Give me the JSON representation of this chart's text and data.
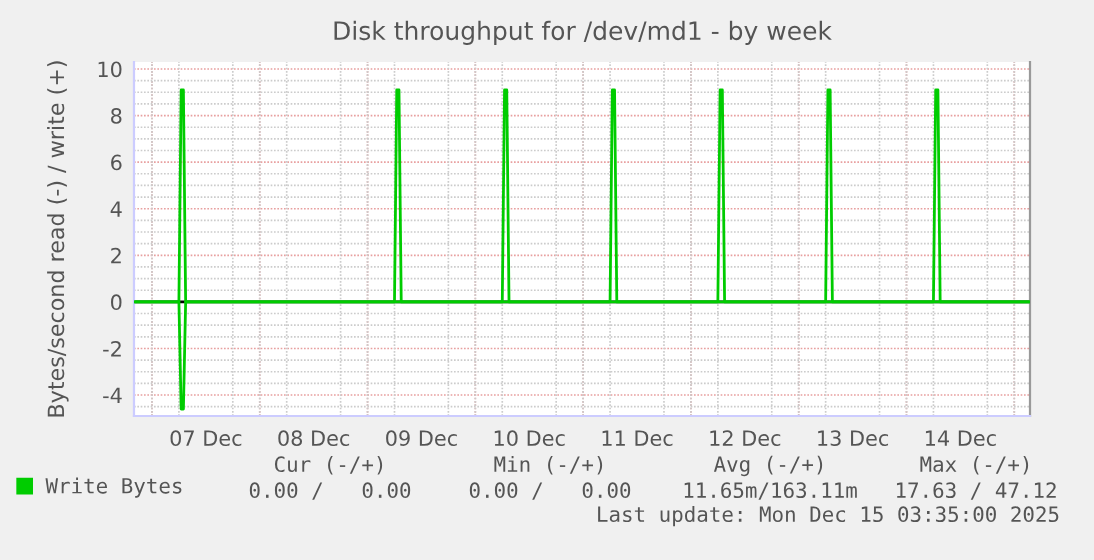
{
  "chart_data": {
    "type": "line",
    "title": "Disk throughput for /dev/md1 - by week",
    "ylabel": "Bytes/second read (-) / write (+)",
    "series": [
      {
        "name": "Write Bytes",
        "color": "#00cc00",
        "x": [
          "2025-12-06T20:00",
          "2025-12-07T06:00",
          "2025-12-07T06:30",
          "2025-12-07T07:00",
          "2025-12-07T07:30",
          "2025-12-09T06:00",
          "2025-12-09T06:30",
          "2025-12-09T07:00",
          "2025-12-09T07:30",
          "2025-12-10T06:00",
          "2025-12-10T06:30",
          "2025-12-10T07:00",
          "2025-12-10T07:30",
          "2025-12-11T06:00",
          "2025-12-11T06:30",
          "2025-12-11T07:00",
          "2025-12-11T07:30",
          "2025-12-12T06:00",
          "2025-12-12T06:30",
          "2025-12-12T07:00",
          "2025-12-12T07:30",
          "2025-12-13T06:00",
          "2025-12-13T06:30",
          "2025-12-13T07:00",
          "2025-12-13T07:30",
          "2025-12-14T06:00",
          "2025-12-14T06:30",
          "2025-12-14T07:00",
          "2025-12-14T07:30",
          "2025-12-15T03:30"
        ],
        "values": [
          0,
          0,
          9.1,
          9.1,
          0,
          0,
          9.1,
          9.1,
          0,
          0,
          9.1,
          9.1,
          0,
          0,
          9.1,
          9.1,
          0,
          0,
          9.1,
          9.1,
          0,
          0,
          9.1,
          9.1,
          0,
          0,
          9.1,
          9.1,
          0,
          0
        ]
      },
      {
        "color": "#00cc00",
        "x": [
          "2025-12-06T20:00",
          "2025-12-07T06:00",
          "2025-12-07T06:30",
          "2025-12-07T07:00",
          "2025-12-07T07:30",
          "2025-12-15T03:30"
        ],
        "values": [
          0,
          0,
          -4.6,
          -4.6,
          0,
          0
        ]
      }
    ],
    "xlim": [
      "2025-12-06T20:00",
      "2025-12-15T03:30"
    ],
    "xticks": [
      {
        "value": "2025-12-07T00:00",
        "label": null
      },
      {
        "value": "2025-12-07T12:00",
        "label": "07 Dec"
      },
      {
        "value": "2025-12-08T00:00",
        "label": null
      },
      {
        "value": "2025-12-08T12:00",
        "label": "08 Dec"
      },
      {
        "value": "2025-12-09T00:00",
        "label": null
      },
      {
        "value": "2025-12-09T12:00",
        "label": "09 Dec"
      },
      {
        "value": "2025-12-10T00:00",
        "label": null
      },
      {
        "value": "2025-12-10T12:00",
        "label": "10 Dec"
      },
      {
        "value": "2025-12-11T00:00",
        "label": null
      },
      {
        "value": "2025-12-11T12:00",
        "label": "11 Dec"
      },
      {
        "value": "2025-12-12T00:00",
        "label": null
      },
      {
        "value": "2025-12-12T12:00",
        "label": "12 Dec"
      },
      {
        "value": "2025-12-13T00:00",
        "label": null
      },
      {
        "value": "2025-12-13T12:00",
        "label": "13 Dec"
      },
      {
        "value": "2025-12-14T00:00",
        "label": null
      },
      {
        "value": "2025-12-14T12:00",
        "label": "14 Dec"
      },
      {
        "value": "2025-12-15T00:00",
        "label": null
      }
    ],
    "ylim": [
      -4.9,
      10.3
    ],
    "yticks": [
      -4,
      -2,
      0,
      2,
      4,
      6,
      8,
      10
    ],
    "ref_lines": [
      {
        "axis": "y",
        "value": 0,
        "color": "#000000"
      }
    ],
    "grid": true,
    "legend": "bottom",
    "marker": "none",
    "line_style": "solid",
    "annotations": [
      "Cur (-/+)",
      "Min (-/+)",
      "Avg (-/+)",
      "Max (-/+)",
      "0.00 /   0.00",
      "0.00 /   0.00",
      "11.65m/163.11m",
      "17.63 / 47.12",
      "Last update: Mon Dec 15 03:35:00 2025"
    ]
  }
}
